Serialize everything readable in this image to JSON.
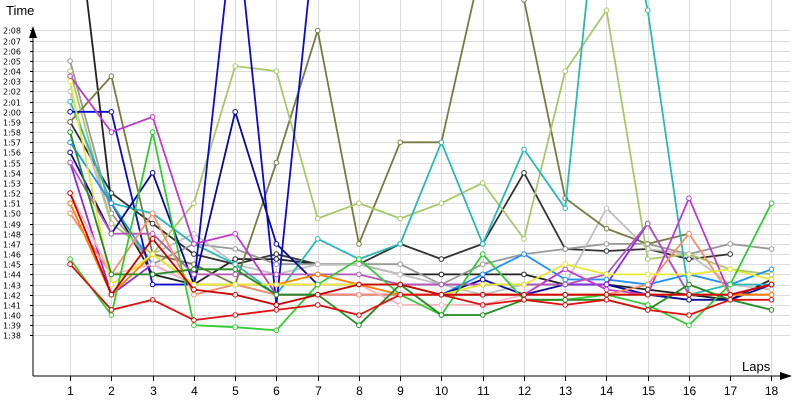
{
  "chart_data": {
    "type": "line",
    "xlabel": "Laps",
    "ylabel": "Time",
    "x": [
      1,
      2,
      3,
      4,
      5,
      6,
      7,
      8,
      9,
      10,
      11,
      12,
      13,
      14,
      15,
      16,
      17,
      18
    ],
    "xlim": [
      0.1,
      18.4
    ],
    "ylim_seconds": [
      94,
      131
    ],
    "yticks": [
      "1:38",
      "1:39",
      "1:40",
      "1:41",
      "1:42",
      "1:43",
      "1:44",
      "1:45",
      "1:46",
      "1:47",
      "1:48",
      "1:49",
      "1:50",
      "1:51",
      "1:52",
      "1:53",
      "1:54",
      "1:55",
      "1:56",
      "1:57",
      "1:58",
      "1:59",
      "2:00",
      "2:01",
      "2:02",
      "2:03",
      "2:04",
      "2:05",
      "2:06",
      "2:07",
      "2:08"
    ],
    "xticks": [
      "1",
      "2",
      "3",
      "4",
      "5",
      "6",
      "7",
      "8",
      "9",
      "10",
      "11",
      "12",
      "13",
      "14",
      "15",
      "16",
      "17",
      "18"
    ],
    "grid": true,
    "legend": "none",
    "series": [
      {
        "color": "#222222",
        "values": [
          "2:25",
          "1:51",
          "1:44",
          "1:43",
          "1:45.5",
          "1:45.5",
          "1:45",
          "1:45",
          "1:44",
          "1:44",
          "1:44",
          "1:44",
          "1:43",
          "1:43",
          "1:42.5",
          "1:42",
          "1:41.5",
          "1:43.5"
        ]
      },
      {
        "color": "#333333",
        "values": [
          "1:59",
          "1:52",
          "1:49",
          "1:46",
          "1:45",
          "1:46",
          "1:45",
          "1:45",
          "1:47",
          "1:45.5",
          "1:47",
          "1:54",
          "1:46.5",
          "1:46.3",
          "1:46.5",
          "1:45.5",
          "1:46",
          null
        ]
      },
      {
        "color": "#999999",
        "values": [
          "2:05",
          "1:50",
          "1:45",
          "1:47",
          "1:46.5",
          "1:45",
          "1:45",
          "1:45",
          "1:45",
          "1:43",
          "1:45",
          "1:46",
          "1:46.5",
          "1:47",
          "1:47",
          "1:46",
          "1:47",
          "1:46.5"
        ]
      },
      {
        "color": "#c0c0c0",
        "values": [
          "2:02",
          "1:49",
          "1:46",
          "1:48",
          "1:45",
          "1:44",
          "1:45",
          "1:45",
          "1:44",
          "1:43",
          "1:42",
          "1:43",
          "1:43",
          "1:50.5",
          "1:46.5",
          "1:46",
          "1:43",
          "1:42.5"
        ]
      },
      {
        "color": "#7a7a46",
        "values": [
          "1:59",
          "2:03.5",
          "1:46",
          "1:45",
          "1:43",
          "1:55",
          "2:08",
          "1:47",
          "1:57",
          "1:57",
          "2:15",
          "2:11",
          "1:51.5",
          "1:48.5",
          "1:47",
          "1:48",
          null,
          null
        ]
      },
      {
        "color": "#a9c86a",
        "values": [
          "2:04",
          "1:49",
          "1:46",
          "1:51",
          "2:04.5",
          "2:04",
          "1:49.5",
          "1:51",
          "1:49.5",
          "1:51",
          "1:53",
          "1:47.5",
          "2:04",
          "2:10",
          "1:45.5",
          "1:46",
          "1:44.5",
          "1:44"
        ]
      },
      {
        "color": "#2ab8b8",
        "values": [
          "2:01",
          "1:51",
          "1:50",
          "1:47",
          "1:45",
          "1:42",
          "1:47.5",
          "1:45.5",
          "1:47",
          "1:57",
          "1:47",
          "1:56.3",
          "1:50.5",
          "2:30",
          "2:10",
          "1:42",
          "1:43",
          "1:43"
        ]
      },
      {
        "color": "#1e90ff",
        "values": [
          "1:57",
          "1:51",
          "1:45",
          "1:43",
          "1:43",
          "1:42",
          "1:42",
          "1:42",
          "1:42",
          "1:42",
          "1:44",
          "1:46",
          "1:43.5",
          "1:43.5",
          "1:43",
          "1:44",
          "1:43",
          "1:44.5"
        ]
      },
      {
        "color": "#0a0ad2",
        "values": [
          "2:00",
          "2:00",
          "1:43",
          "1:43",
          "2:20",
          "1:41",
          "2:20",
          null,
          null,
          null,
          null,
          null,
          null,
          null,
          null,
          null,
          null,
          null
        ]
      },
      {
        "color": "#0a0a96",
        "values": [
          "1:56",
          "1:48",
          "1:54",
          "1:43",
          "2:00",
          "1:47",
          "1:43",
          "1:43",
          "1:43",
          "1:42",
          "1:43.5",
          "1:42",
          "1:43",
          "1:43",
          "1:42",
          "1:41.5",
          "1:41.5",
          "1:43"
        ]
      },
      {
        "color": "#8a2be2",
        "values": [
          "1:55",
          "1:42",
          "1:45",
          "1:43",
          "1:43",
          "1:43",
          "1:43",
          "1:43",
          "1:43",
          "1:43",
          "1:43",
          "1:43",
          "1:43",
          "1:43",
          "1:49",
          "1:42",
          "1:42",
          "1:43"
        ]
      },
      {
        "color": "#c03ad0",
        "values": [
          "2:03.5",
          "1:58",
          "1:59.5",
          "1:47",
          "1:48",
          "1:42",
          "1:42",
          "1:42",
          "1:42",
          "1:42",
          "1:42",
          "1:42",
          "1:44.5",
          "1:42.5",
          "1:42",
          "1:51.5",
          "1:42",
          "1:43"
        ]
      },
      {
        "color": "#b45ab4",
        "values": [
          "1:55",
          "1:48",
          "1:48",
          "1:44",
          "1:44",
          "1:44",
          "1:44",
          "1:44",
          "1:43",
          "1:43",
          "1:43",
          "1:43",
          "1:43",
          "1:44",
          "1:49",
          "1:42",
          "1:42",
          "1:42"
        ]
      },
      {
        "color": "#ff8c69",
        "values": [
          "1:50",
          "1:44",
          "1:50",
          "1:42",
          "1:43",
          "1:42",
          "1:42",
          "1:42",
          "1:42",
          "1:42",
          "1:42",
          "1:42",
          "1:42",
          "1:42",
          "1:43",
          "1:48",
          "1:42",
          "1:42"
        ]
      },
      {
        "color": "#ffb6c1",
        "values": [
          "1:52",
          "1:44",
          "1:45",
          "1:43",
          "1:43",
          "1:43",
          "1:43",
          "1:43",
          "1:41",
          "1:41",
          "1:41",
          "1:42",
          "1:42",
          "1:42",
          "1:42",
          "1:42",
          "1:42",
          "1:42"
        ]
      },
      {
        "color": "#ff7f00",
        "values": [
          "1:51",
          "1:42",
          "1:46",
          "1:43",
          "1:43",
          "1:43",
          "1:44",
          "1:43",
          "1:42",
          "1:42",
          "1:42",
          "1:42",
          "1:42",
          "1:42",
          "1:42",
          "1:42",
          "1:42",
          "1:42"
        ]
      },
      {
        "color": "#e8e830",
        "values": [
          "2:03",
          "1:43",
          "1:46",
          "1:43",
          "1:43",
          "1:43",
          "1:43",
          "1:43",
          "1:43",
          "1:42",
          "1:43",
          "1:43",
          "1:45",
          "1:44",
          "1:44",
          "1:44",
          "1:44.5",
          "1:43.5"
        ]
      },
      {
        "color": "#32cd32",
        "values": [
          "1:45.5",
          "1:40",
          "1:58",
          "1:39",
          "1:38.8",
          "1:38.5",
          "1:43",
          "1:45.5",
          "1:42",
          "1:40",
          "1:46",
          "1:41.5",
          "1:41.5",
          "1:42",
          "1:41",
          "1:39",
          "1:43",
          "1:51"
        ]
      },
      {
        "color": "#228b22",
        "values": [
          "1:58",
          "1:44",
          "1:44",
          "1:44.5",
          "1:44.5",
          "1:42",
          "1:42",
          "1:39",
          "1:43",
          "1:40",
          "1:40",
          "1:41.5",
          "1:41.5",
          "1:41.5",
          "1:40.5",
          "1:43",
          "1:41.5",
          "1:40.5"
        ]
      },
      {
        "color": "#e01010",
        "values": [
          "1:45",
          "1:40.5",
          "1:41.5",
          "1:39.5",
          "1:40",
          "1:40.5",
          "1:41",
          "1:40",
          "1:42",
          "1:42",
          "1:41",
          "1:41.5",
          "1:41",
          "1:41.5",
          "1:40.5",
          "1:40",
          "1:41.5",
          "1:41.5"
        ]
      },
      {
        "color": "#cc0000",
        "values": [
          "1:52",
          "1:42",
          "1:47.5",
          "1:42.5",
          "1:42",
          "1:41",
          "1:42",
          "1:43",
          "1:43",
          "1:42",
          "1:42",
          "1:42",
          "1:42",
          "1:42",
          "1:42",
          "1:42",
          "1:42",
          "1:43"
        ]
      }
    ]
  }
}
